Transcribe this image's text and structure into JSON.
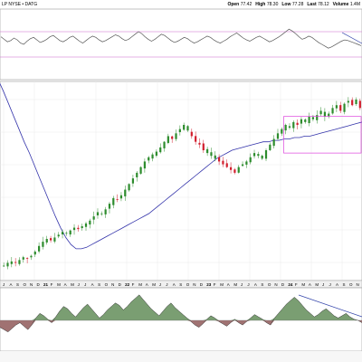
{
  "header": {
    "symbol": "LP  NYSE • DATG",
    "readouts": [
      {
        "label": "Open",
        "value": "77.42"
      },
      {
        "label": "High",
        "value": "78.30"
      },
      {
        "label": "Low",
        "value": "77.28"
      },
      {
        "label": "Last",
        "value": "78.12"
      },
      {
        "label": "Volume",
        "value": "1.4M"
      }
    ]
  },
  "colors": {
    "up_candle": "#2d8c2d",
    "down_candle": "#d21e2d",
    "moving_average": "#3333aa",
    "rsi_line": "#555555",
    "rsi_band": "#cc66cc",
    "indicator_fill": "#7a9e72",
    "indicator_fill_negative": "#a07272",
    "rectangle": "#dd44dd",
    "trendline": "#3344aa",
    "grid": "#e4e4e4",
    "axis_strip": "#f0f0f0"
  },
  "chart_data": [
    {
      "type": "line",
      "panel": "upper-indicator",
      "title": "",
      "values": [
        62,
        58,
        54,
        56,
        60,
        57,
        52,
        50,
        55,
        59,
        61,
        57,
        53,
        55,
        58,
        62,
        64,
        60,
        56,
        54,
        57,
        61,
        63,
        59,
        55,
        52,
        56,
        60,
        63,
        61,
        57,
        54,
        56,
        59,
        62,
        65,
        63,
        59,
        56,
        58,
        62,
        66,
        70,
        67,
        62,
        58,
        55,
        58,
        62,
        66,
        64,
        60,
        56,
        53,
        55,
        58,
        61,
        59,
        55,
        52,
        54,
        57,
        60,
        63,
        61,
        57,
        54,
        52,
        55,
        58,
        62,
        65,
        68,
        64,
        60,
        57,
        55,
        58,
        61,
        63,
        60,
        57,
        54,
        56,
        59,
        62,
        66,
        70,
        74,
        71,
        67,
        62,
        58,
        60,
        63,
        61,
        57,
        53,
        50,
        47,
        44,
        46,
        49,
        52,
        55,
        57,
        56,
        54,
        52,
        50,
        48
      ],
      "reference_lines": [
        70,
        30
      ]
    },
    {
      "type": "candlestick",
      "panel": "price",
      "title": "",
      "x_labels": [
        "J",
        "A",
        "S",
        "O",
        "N",
        "D",
        "21",
        "F",
        "M",
        "A",
        "M",
        "J",
        "J",
        "A",
        "S",
        "O",
        "N",
        "D",
        "22",
        "F",
        "M",
        "A",
        "M",
        "J",
        "J",
        "A",
        "S",
        "O",
        "N",
        "D",
        "23",
        "F",
        "M",
        "A",
        "M",
        "J",
        "J",
        "A",
        "S",
        "O",
        "N",
        "D",
        "24",
        "F",
        "M",
        "A",
        "M",
        "J",
        "J",
        "A",
        "S",
        "O",
        "N"
      ],
      "bold_labels": [
        "21",
        "22",
        "23",
        "24"
      ],
      "price_values": [
        18,
        20,
        21,
        20,
        22,
        24,
        23,
        25,
        28,
        32,
        35,
        37,
        36,
        38,
        40,
        42,
        41,
        43,
        45,
        44,
        46,
        48,
        50,
        53,
        56,
        55,
        58,
        62,
        66,
        65,
        68,
        72,
        76,
        80,
        84,
        88,
        92,
        95,
        97,
        99,
        102,
        106,
        110,
        108,
        112,
        115,
        118,
        114,
        110,
        106,
        104,
        100,
        98,
        96,
        94,
        92,
        90,
        88,
        86,
        84,
        88,
        90,
        92,
        95,
        98,
        96,
        94,
        100,
        104,
        108,
        112,
        115,
        118,
        116,
        120,
        118,
        122,
        120,
        124,
        122,
        125,
        128,
        124,
        126,
        130,
        132,
        128,
        133,
        135,
        132,
        136,
        130
      ],
      "moving_average": [
        150,
        142,
        133,
        124,
        115,
        106,
        98,
        89,
        80,
        71,
        62,
        53,
        45,
        38,
        33,
        30,
        30,
        31,
        33,
        35,
        37,
        39,
        41,
        43,
        45,
        47,
        49,
        51,
        53,
        55,
        58,
        61,
        64,
        67,
        70,
        73,
        76,
        79,
        82,
        85,
        88,
        91,
        94,
        96,
        98,
        100,
        101,
        102,
        103,
        104,
        105,
        106,
        106,
        107,
        107,
        108,
        108,
        109,
        109,
        110,
        110,
        111,
        112,
        113,
        114,
        115,
        116,
        117,
        118,
        119,
        120
      ],
      "rectangle": {
        "start_index": 72,
        "end_index": 92,
        "low": 98,
        "high": 124
      }
    },
    {
      "type": "area",
      "panel": "lower-indicator",
      "title": "",
      "zero_line": 0,
      "values": [
        -6,
        -8,
        -10,
        -7,
        -4,
        -2,
        -5,
        -8,
        -4,
        2,
        6,
        4,
        1,
        -2,
        3,
        8,
        12,
        10,
        6,
        3,
        7,
        11,
        14,
        10,
        6,
        2,
        5,
        9,
        12,
        15,
        13,
        9,
        12,
        16,
        19,
        22,
        18,
        14,
        10,
        7,
        4,
        8,
        12,
        15,
        11,
        8,
        5,
        2,
        -1,
        -4,
        -6,
        -3,
        1,
        4,
        2,
        -1,
        -3,
        -5,
        -2,
        1,
        -2,
        -4,
        -1,
        2,
        5,
        3,
        1,
        -2,
        -4,
        2,
        6,
        10,
        14,
        17,
        20,
        17,
        13,
        9,
        6,
        3,
        5,
        8,
        10,
        7,
        4,
        2,
        4,
        6,
        3,
        1,
        0,
        -2
      ]
    }
  ]
}
